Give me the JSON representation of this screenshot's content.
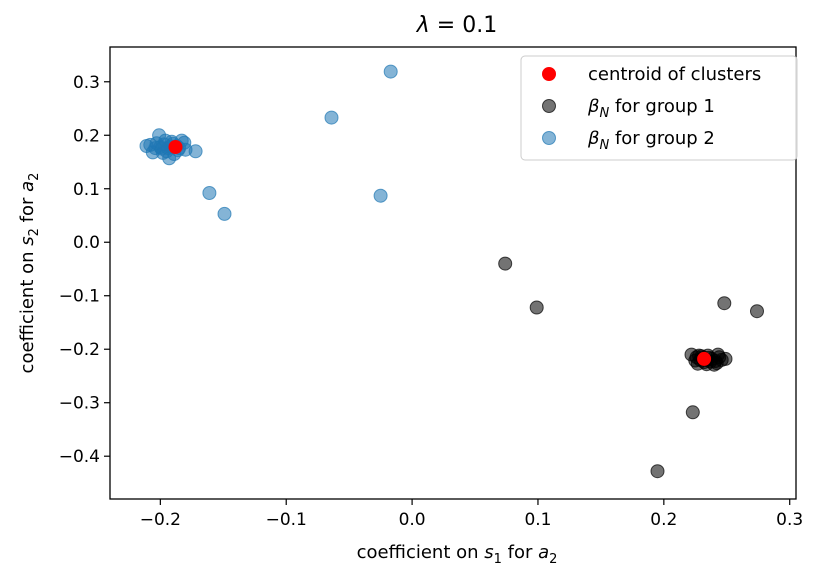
{
  "chart_data": {
    "type": "scatter",
    "title": "λ = 0.1",
    "xlabel": "coefficient on s1 for a2",
    "ylabel": "coefficient on s2 for a2",
    "xlabel_parts": {
      "prefix": "coefficient on ",
      "var": "s",
      "sub": "1",
      "suffix": " for ",
      "var2": "a",
      "sub2": "2"
    },
    "ylabel_parts": {
      "prefix": "coefficient on ",
      "var": "s",
      "sub": "2",
      "suffix": " for ",
      "var2": "a",
      "sub2": "2"
    },
    "xlim": [
      -0.24,
      0.305
    ],
    "ylim": [
      -0.48,
      0.365
    ],
    "xticks": [
      -0.2,
      -0.1,
      0.0,
      0.1,
      0.2,
      0.3
    ],
    "xtick_labels": [
      "−0.2",
      "−0.1",
      "0.0",
      "0.1",
      "0.2",
      "0.3"
    ],
    "yticks": [
      0.3,
      0.2,
      0.1,
      0.0,
      -0.1,
      -0.2,
      -0.3,
      -0.4
    ],
    "ytick_labels": [
      "0.3",
      "0.2",
      "0.1",
      "0.0",
      "−0.1",
      "−0.2",
      "−0.3",
      "−0.4"
    ],
    "legend_position": "upper-right",
    "series": [
      {
        "name": "centroid of clusters",
        "legend_label": "centroid of clusters",
        "color": "#ff0000",
        "alpha": 1.0,
        "marker_size": "small",
        "points": [
          [
            -0.188,
            0.178
          ],
          [
            0.232,
            -0.218
          ]
        ]
      },
      {
        "name": "beta_N for group 1",
        "legend_label": {
          "var": "β",
          "sub": "N",
          "suffix": " for group 1"
        },
        "color": "#000000",
        "alpha": 0.55,
        "points": [
          [
            0.074,
            -0.04
          ],
          [
            0.099,
            -0.122
          ],
          [
            0.248,
            -0.114
          ],
          [
            0.274,
            -0.129
          ],
          [
            0.223,
            -0.318
          ],
          [
            0.195,
            -0.428
          ],
          [
            0.222,
            -0.21
          ],
          [
            0.226,
            -0.215
          ],
          [
            0.229,
            -0.22
          ],
          [
            0.232,
            -0.224
          ],
          [
            0.235,
            -0.212
          ],
          [
            0.238,
            -0.218
          ],
          [
            0.241,
            -0.222
          ],
          [
            0.244,
            -0.215
          ],
          [
            0.227,
            -0.227
          ],
          [
            0.234,
            -0.228
          ],
          [
            0.24,
            -0.229
          ],
          [
            0.246,
            -0.22
          ],
          [
            0.249,
            -0.218
          ],
          [
            0.23,
            -0.213
          ],
          [
            0.236,
            -0.216
          ],
          [
            0.243,
            -0.21
          ],
          [
            0.225,
            -0.221
          ],
          [
            0.231,
            -0.216
          ],
          [
            0.237,
            -0.223
          ],
          [
            0.242,
            -0.226
          ],
          [
            0.228,
            -0.212
          ],
          [
            0.233,
            -0.22
          ]
        ]
      },
      {
        "name": "beta_N for group 2",
        "legend_label": {
          "var": "β",
          "sub": "N",
          "suffix": " for group 2"
        },
        "color": "#1f77b4",
        "alpha": 0.55,
        "points": [
          [
            -0.017,
            0.319
          ],
          [
            -0.064,
            0.233
          ],
          [
            -0.025,
            0.087
          ],
          [
            -0.161,
            0.092
          ],
          [
            -0.149,
            0.053
          ],
          [
            -0.172,
            0.17
          ],
          [
            -0.211,
            0.18
          ],
          [
            -0.206,
            0.168
          ],
          [
            -0.203,
            0.185
          ],
          [
            -0.201,
            0.2
          ],
          [
            -0.199,
            0.175
          ],
          [
            -0.197,
            0.183
          ],
          [
            -0.195,
            0.17
          ],
          [
            -0.193,
            0.157
          ],
          [
            -0.191,
            0.188
          ],
          [
            -0.189,
            0.165
          ],
          [
            -0.187,
            0.18
          ],
          [
            -0.185,
            0.176
          ],
          [
            -0.183,
            0.19
          ],
          [
            -0.181,
            0.186
          ],
          [
            -0.18,
            0.173
          ],
          [
            -0.186,
            0.172
          ],
          [
            -0.196,
            0.19
          ],
          [
            -0.2,
            0.178
          ],
          [
            -0.204,
            0.176
          ],
          [
            -0.192,
            0.179
          ],
          [
            -0.198,
            0.167
          ],
          [
            -0.19,
            0.184
          ],
          [
            -0.194,
            0.176
          ],
          [
            -0.208,
            0.182
          ]
        ]
      }
    ]
  }
}
